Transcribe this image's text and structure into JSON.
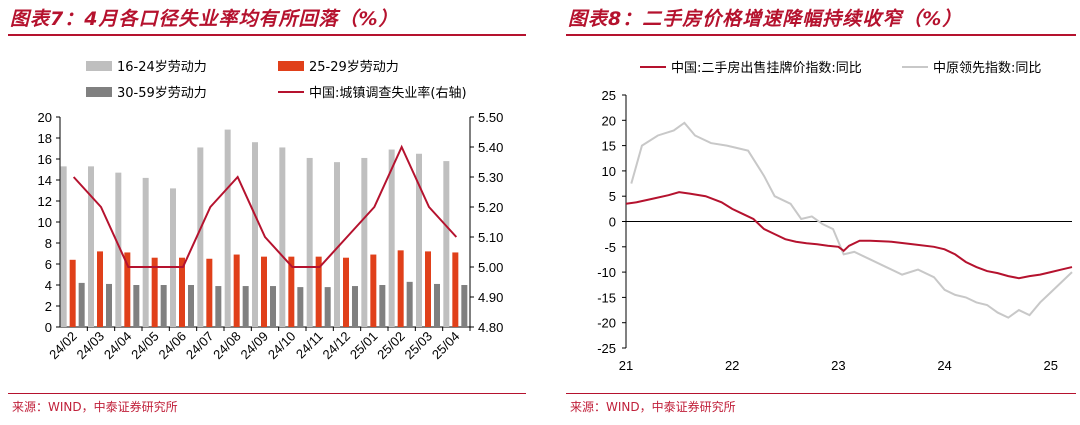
{
  "colors": {
    "accent": "#b5122e",
    "bar_16_24": "#bfbfbf",
    "bar_25_29": "#e0401a",
    "bar_30_59": "#808080",
    "line_main": "#b5122e",
    "line_secondary": "#c8c8c8"
  },
  "left": {
    "title": "图表7：4月各口径失业率均有所回落（%）",
    "source": "来源：WIND，中泰证券研究所",
    "chart_data": {
      "type": "bar",
      "categories": [
        "24/02",
        "24/03",
        "24/04",
        "24/05",
        "24/06",
        "24/07",
        "24/08",
        "24/09",
        "24/10",
        "24/11",
        "24/12",
        "25/01",
        "25/02",
        "25/03",
        "25/04"
      ],
      "series": [
        {
          "name": "16-24岁劳动力",
          "type": "bar",
          "axis": "left",
          "values": [
            15.3,
            15.3,
            14.7,
            14.2,
            13.2,
            17.1,
            18.8,
            17.6,
            17.1,
            16.1,
            15.7,
            16.1,
            16.9,
            16.5,
            15.8
          ]
        },
        {
          "name": "25-29岁劳动力",
          "type": "bar",
          "axis": "left",
          "values": [
            6.4,
            7.2,
            7.1,
            6.6,
            6.6,
            6.5,
            6.9,
            6.7,
            6.7,
            6.7,
            6.6,
            6.9,
            7.3,
            7.2,
            7.1
          ]
        },
        {
          "name": "30-59岁劳动力",
          "type": "bar",
          "axis": "left",
          "values": [
            4.2,
            4.1,
            4.0,
            4.0,
            4.0,
            3.9,
            3.9,
            3.9,
            3.8,
            3.8,
            3.9,
            4.0,
            4.3,
            4.1,
            4.0
          ]
        },
        {
          "name": "中国:城镇调查失业率(右轴)",
          "type": "line",
          "axis": "right",
          "values": [
            5.3,
            5.2,
            5.0,
            5.0,
            5.0,
            5.2,
            5.3,
            5.1,
            5.0,
            5.0,
            5.1,
            5.2,
            5.4,
            5.2,
            5.1
          ]
        }
      ],
      "ylim": [
        0,
        20
      ],
      "yticks": [
        "0",
        "2",
        "4",
        "6",
        "8",
        "10",
        "12",
        "14",
        "16",
        "18",
        "20"
      ],
      "y2lim": [
        4.8,
        5.5
      ],
      "y2ticks": [
        "4.80",
        "4.90",
        "5.00",
        "5.10",
        "5.20",
        "5.30",
        "5.40",
        "5.50"
      ],
      "legend_position": "top"
    }
  },
  "right": {
    "title": "图表8：二手房价格增速降幅持续收窄（%）",
    "source": "来源：WIND，中泰证券研究所",
    "chart_data": {
      "type": "line",
      "x_ticks": [
        "21",
        "22",
        "23",
        "24",
        "25"
      ],
      "ylim": [
        -25,
        25
      ],
      "yticks": [
        "25",
        "20",
        "15",
        "10",
        "5",
        "0",
        "-5",
        "-10",
        "-15",
        "-20",
        "-25"
      ],
      "legend_position": "top",
      "series": [
        {
          "name": "中国:二手房出售挂牌价指数:同比",
          "x": [
            2021.0,
            2021.1,
            2021.25,
            2021.4,
            2021.5,
            2021.6,
            2021.75,
            2021.9,
            2022.0,
            2022.1,
            2022.2,
            2022.3,
            2022.4,
            2022.5,
            2022.6,
            2022.7,
            2022.8,
            2022.9,
            2023.0,
            2023.05,
            2023.1,
            2023.2,
            2023.3,
            2023.5,
            2023.7,
            2023.9,
            2024.0,
            2024.1,
            2024.2,
            2024.3,
            2024.4,
            2024.5,
            2024.6,
            2024.7,
            2024.8,
            2024.9,
            2025.0,
            2025.1,
            2025.2
          ],
          "values": [
            3.5,
            3.8,
            4.5,
            5.2,
            5.8,
            5.5,
            5.0,
            3.8,
            2.5,
            1.5,
            0.5,
            -1.5,
            -2.5,
            -3.5,
            -4.0,
            -4.3,
            -4.5,
            -4.8,
            -5.0,
            -5.8,
            -4.8,
            -3.8,
            -3.8,
            -4.0,
            -4.5,
            -5.0,
            -5.5,
            -6.5,
            -8.0,
            -9.0,
            -9.8,
            -10.2,
            -10.8,
            -11.2,
            -10.8,
            -10.5,
            -10.0,
            -9.5,
            -9.0
          ]
        },
        {
          "name": "中原领先指数:同比",
          "x": [
            2021.05,
            2021.15,
            2021.3,
            2021.45,
            2021.55,
            2021.65,
            2021.8,
            2021.95,
            2022.05,
            2022.15,
            2022.3,
            2022.4,
            2022.55,
            2022.65,
            2022.75,
            2022.85,
            2022.95,
            2023.05,
            2023.15,
            2023.3,
            2023.45,
            2023.6,
            2023.75,
            2023.9,
            2024.0,
            2024.1,
            2024.2,
            2024.3,
            2024.4,
            2024.5,
            2024.6,
            2024.7,
            2024.8,
            2024.9,
            2025.0,
            2025.1,
            2025.2
          ],
          "values": [
            7.5,
            15.0,
            17.0,
            18.0,
            19.5,
            17.0,
            15.5,
            15.0,
            14.5,
            14.0,
            9.0,
            5.0,
            3.5,
            0.5,
            1.0,
            -0.5,
            -1.5,
            -6.5,
            -6.0,
            -7.5,
            -9.0,
            -10.5,
            -9.5,
            -11.0,
            -13.5,
            -14.5,
            -15.0,
            -16.0,
            -16.5,
            -18.0,
            -19.0,
            -17.5,
            -18.5,
            -16.0,
            -14.0,
            -12.0,
            -10.0
          ]
        }
      ]
    }
  }
}
